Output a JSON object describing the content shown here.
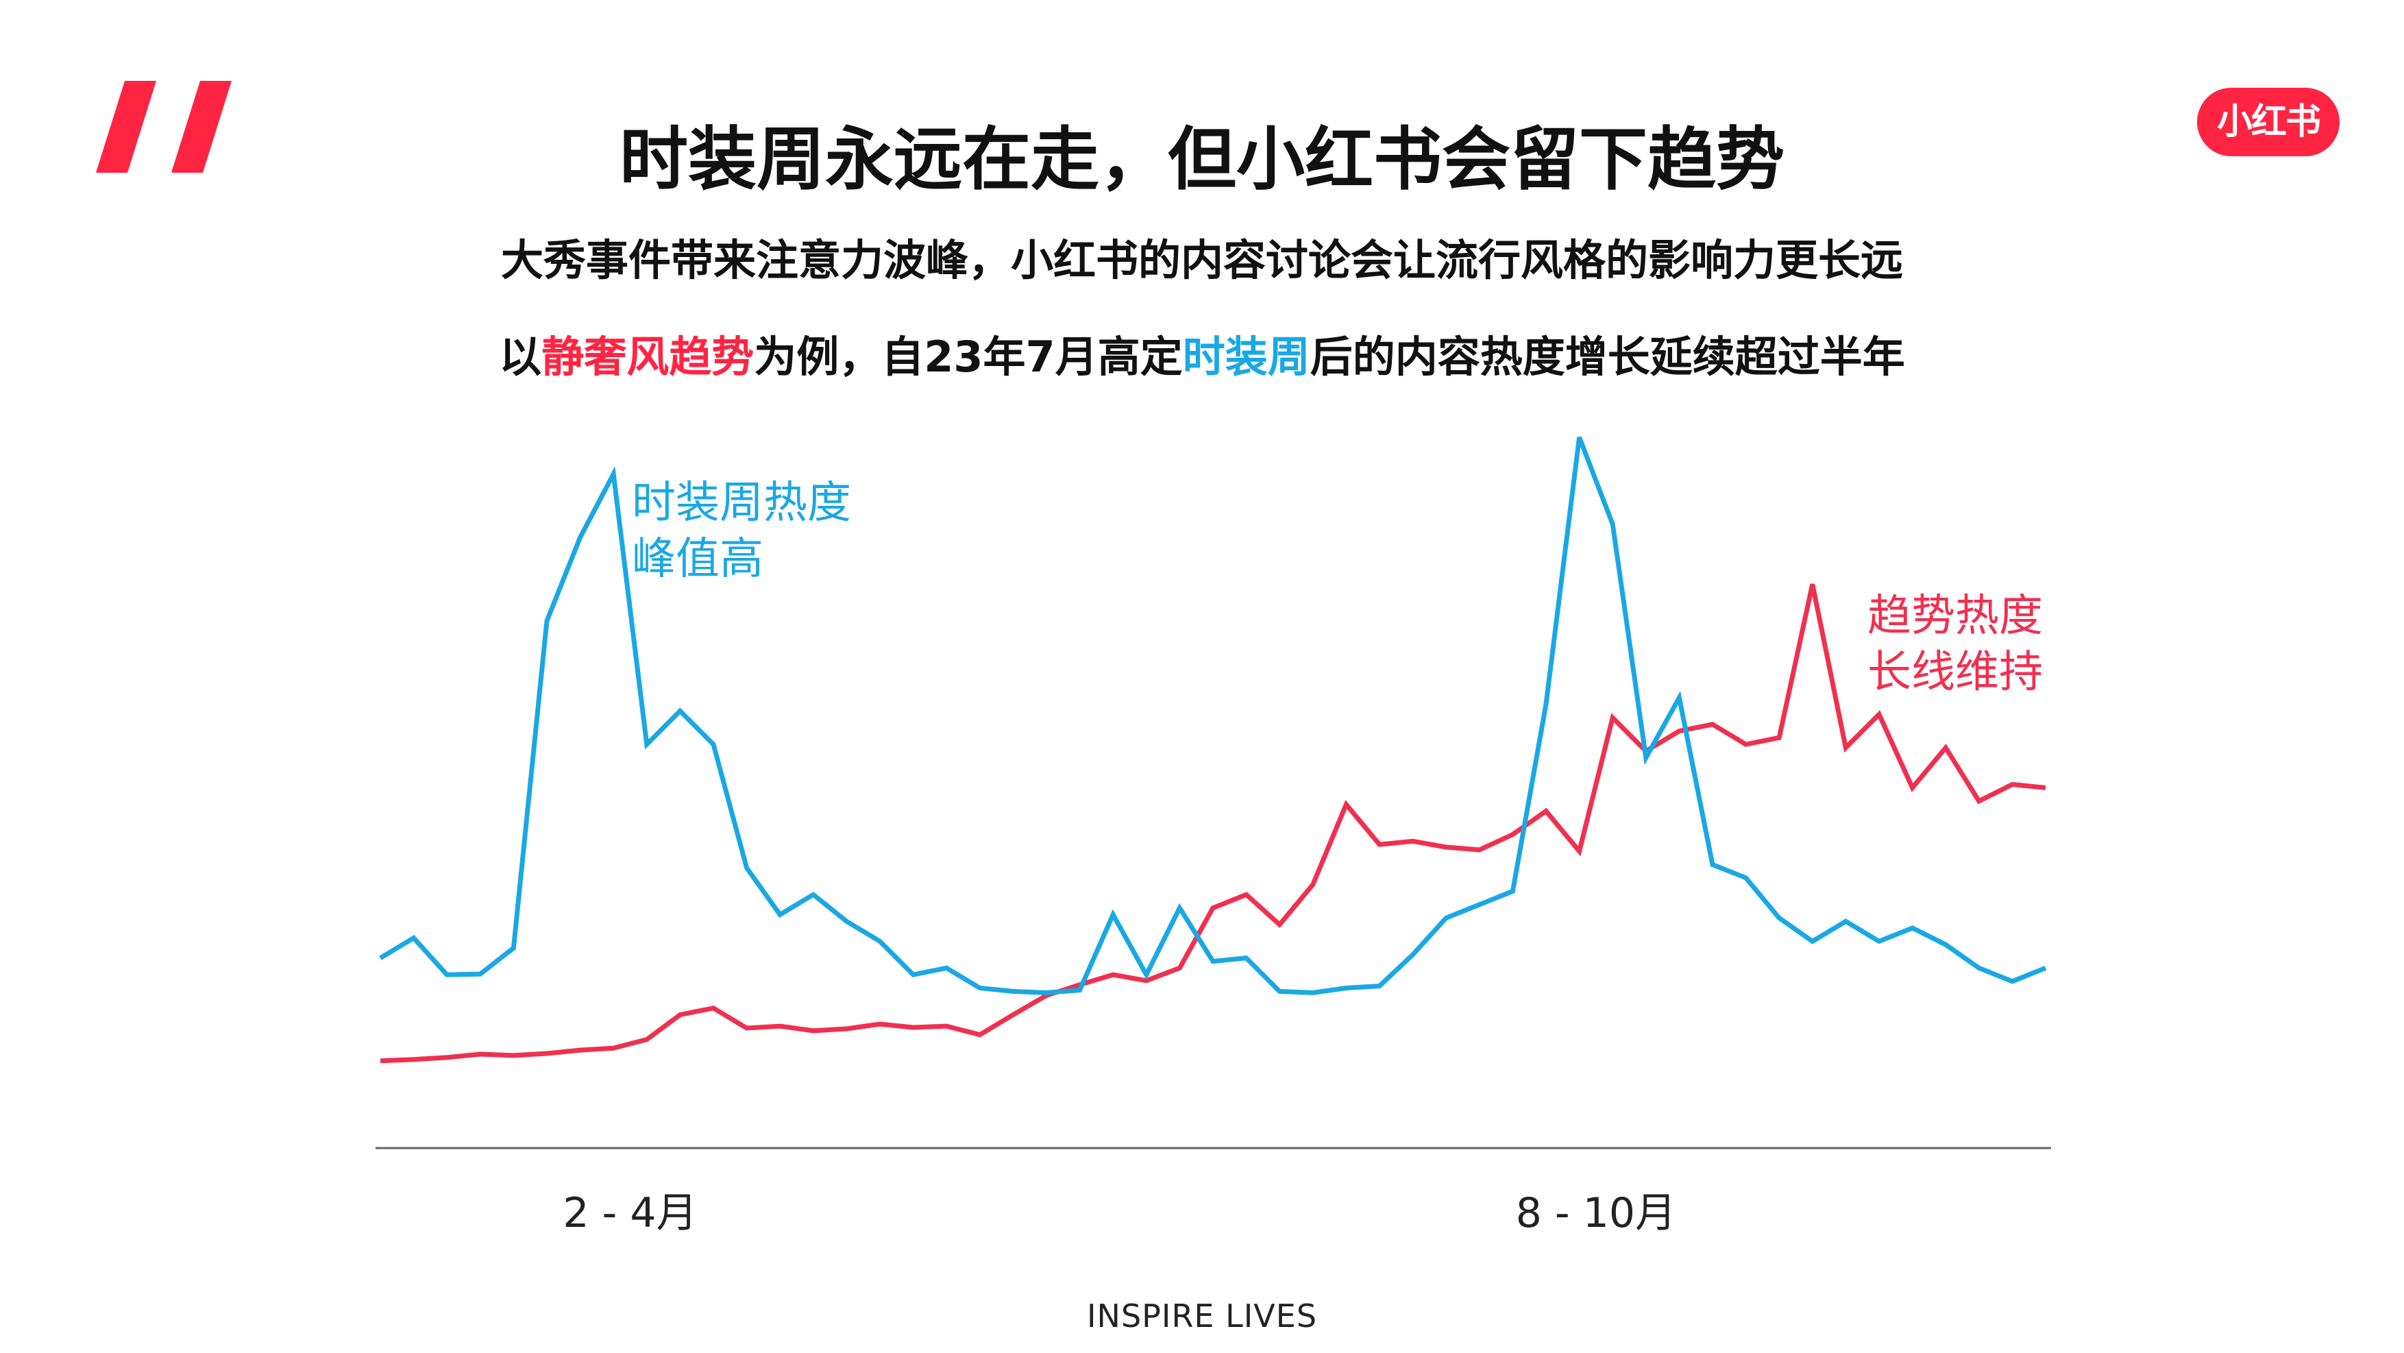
{
  "header": {
    "logo_text": "小红书",
    "title": "时装周永远在走，但小红书会留下趋势",
    "subtitle_line1": "大秀事件带来注意力波峰，小红书的内容讨论会让流行风格的影响力更长远",
    "subtitle_line2": {
      "part1": "以",
      "part2": "静奢风趋势",
      "part3": "为例，自23年7月高定",
      "part4": "时装周",
      "part5": "后的内容热度增长延续超过半年"
    }
  },
  "footer": {
    "text": "INSPIRE LIVES"
  },
  "colors": {
    "brand_red": "#ff2442",
    "trend_red": "#f0304f",
    "fashion_week_blue": "#1aa8e4",
    "axis_gray": "#666666",
    "text_dark": "#111111"
  },
  "icons": {
    "quote_mark": "double-slash-quote-icon",
    "logo": "xiaohongshu-logo-icon"
  },
  "chart_data": {
    "type": "line",
    "title": "",
    "xlabel": "",
    "ylabel": "",
    "y_axis_visible": false,
    "grid": false,
    "ylim": [
      0,
      100
    ],
    "x_tick_labels": [
      {
        "label": "2 - 4月",
        "at_index": 7.5
      },
      {
        "label": "8 - 10月",
        "at_index": 36.5
      }
    ],
    "x": [
      0,
      1,
      2,
      3,
      4,
      5,
      6,
      7,
      8,
      9,
      10,
      11,
      12,
      13,
      14,
      15,
      16,
      17,
      18,
      19,
      20,
      21,
      22,
      23,
      24,
      25,
      26,
      27,
      28,
      29,
      30,
      31,
      32,
      33,
      34,
      35,
      36,
      37,
      38,
      39,
      40,
      41,
      42,
      43,
      44,
      45,
      46,
      47,
      48,
      49,
      50
    ],
    "series": [
      {
        "key": "fashion_week",
        "color": "#1aa8e4",
        "annotation": [
          "时装周热度",
          "峰值高"
        ],
        "values": [
          22,
          25,
          19.5,
          19.6,
          23.5,
          72.5,
          85,
          94.5,
          54,
          59,
          54,
          35.5,
          28.5,
          31.5,
          27.5,
          24.5,
          19.5,
          20.5,
          17.5,
          17,
          16.8,
          17.2,
          28.5,
          19.5,
          29.5,
          21.5,
          22,
          17,
          16.8,
          17.5,
          17.8,
          22.5,
          28,
          30,
          32,
          60,
          100,
          87,
          52,
          61,
          36,
          34,
          28,
          24.5,
          27.5,
          24.5,
          26.5,
          24,
          20.5,
          18.5,
          20.5
        ]
      },
      {
        "key": "trend",
        "color": "#f0304f",
        "annotation": [
          "趋势热度",
          "长线维持"
        ],
        "values": [
          6.6,
          6.8,
          7.1,
          7.6,
          7.4,
          7.7,
          8.2,
          8.5,
          9.8,
          13.5,
          14.5,
          11.5,
          11.8,
          11.1,
          11.4,
          12.1,
          11.6,
          11.8,
          10.5,
          13.5,
          16.4,
          18,
          19.5,
          18.6,
          20.5,
          29.5,
          31.5,
          27,
          33,
          45,
          39,
          39.5,
          38.6,
          38.2,
          40.5,
          44,
          38,
          58,
          53,
          56,
          57,
          54,
          55,
          78,
          53.5,
          58.5,
          47.5,
          53.5,
          45.5,
          48,
          47.5
        ]
      }
    ]
  }
}
